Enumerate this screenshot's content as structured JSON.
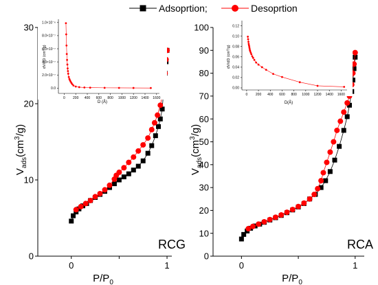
{
  "legend": {
    "placement": "top-center",
    "items": [
      {
        "label": "Adsoprtion;",
        "marker": "square",
        "color": "#000000"
      },
      {
        "label": "Desoprtion",
        "marker": "circle",
        "color": "#ff0000"
      }
    ]
  },
  "colors": {
    "adsorption": "#000000",
    "desorption": "#ff0000",
    "axis": "#000000"
  },
  "chart_data": [
    {
      "type": "scatter",
      "label": "RCG",
      "xlabel": "P/P0",
      "ylabel": "Vads(cm3/g)",
      "xlim": [
        -0.35,
        1.05
      ],
      "ylim": [
        0,
        30
      ],
      "xticks": [
        0,
        0.5,
        1
      ],
      "xtick_labels": [
        "0",
        "",
        "1"
      ],
      "yticks": [
        0,
        10,
        20,
        30
      ],
      "ytick_labels": [
        "0",
        "10",
        "20",
        "30"
      ],
      "grid": false,
      "series": [
        {
          "name": "Adsoprtion;",
          "marker": "square",
          "color": "#000000",
          "x": [
            0.0,
            0.02,
            0.05,
            0.08,
            0.12,
            0.16,
            0.2,
            0.25,
            0.3,
            0.35,
            0.4,
            0.45,
            0.5,
            0.55,
            0.6,
            0.65,
            0.7,
            0.75,
            0.8,
            0.84,
            0.88,
            0.91,
            0.93,
            0.95,
            0.96,
            0.97,
            0.98,
            0.99,
            1.0
          ],
          "y": [
            4.6,
            5.3,
            5.8,
            6.2,
            6.6,
            6.9,
            7.3,
            7.7,
            8.1,
            8.5,
            9.0,
            9.5,
            10.0,
            10.4,
            10.8,
            11.3,
            11.8,
            12.5,
            13.5,
            14.5,
            15.8,
            17.0,
            18.0,
            19.3,
            21.0,
            22.5,
            24.0,
            25.5,
            27.0
          ]
        },
        {
          "name": "Desoprtion",
          "marker": "circle",
          "color": "#ff0000",
          "x": [
            1.0,
            0.99,
            0.98,
            0.97,
            0.95,
            0.93,
            0.9,
            0.87,
            0.84,
            0.8,
            0.75,
            0.7,
            0.65,
            0.6,
            0.55,
            0.5,
            0.47,
            0.45,
            0.4,
            0.35,
            0.3,
            0.25,
            0.2,
            0.15,
            0.1,
            0.05
          ],
          "y": [
            27.0,
            25.8,
            24.0,
            22.8,
            21.0,
            19.8,
            18.5,
            17.5,
            16.6,
            15.5,
            14.6,
            13.8,
            13.0,
            12.3,
            11.6,
            11.0,
            10.6,
            10.1,
            9.3,
            8.7,
            8.2,
            7.8,
            7.3,
            6.9,
            6.5,
            6.1
          ]
        }
      ],
      "inset": {
        "type": "scatter",
        "xlabel": "D (Å)",
        "ylabel": "dV/dD (cm3/g)",
        "xlim": [
          -100,
          1650
        ],
        "ylim": [
          -8e-08,
          1.05e-06
        ],
        "xticks": [
          0,
          200,
          400,
          600,
          800,
          1000,
          1200,
          1400,
          1600
        ],
        "xtick_labels": [
          "0",
          "200",
          "400",
          "600",
          "800",
          "1000",
          "1200",
          "1400",
          "1600"
        ],
        "yticks": [
          0,
          2e-07,
          4e-07,
          6e-07,
          8e-07,
          1e-06
        ],
        "ytick_labels": [
          "0.0",
          "2.0×10⁻⁷",
          "4.0×10⁻⁷",
          "6.0×10⁻⁷",
          "8.0×10⁻⁷",
          "1.0×10⁻⁶"
        ],
        "color": "#ff0000",
        "x": [
          30,
          35,
          40,
          45,
          50,
          55,
          60,
          65,
          70,
          80,
          90,
          100,
          110,
          125,
          140,
          160,
          200,
          260,
          350,
          450,
          700,
          950,
          1200,
          1500
        ],
        "y": [
          9.9e-07,
          8.2e-07,
          6.5e-07,
          5.2e-07,
          4.3e-07,
          3.6e-07,
          3e-07,
          2.6e-07,
          2.2e-07,
          1.7e-07,
          1.4e-07,
          1.2e-07,
          1e-07,
          8e-08,
          6e-08,
          4e-08,
          2.5e-08,
          1.5e-08,
          1e-08,
          8e-09,
          5e-09,
          4e-09,
          3e-09,
          2e-09
        ]
      }
    },
    {
      "type": "scatter",
      "label": "RCA",
      "xlabel": "P/P0",
      "ylabel": "Vads(cm3/g)",
      "xlim": [
        -0.25,
        1.08
      ],
      "ylim": [
        0,
        100
      ],
      "xticks": [
        0,
        0.5,
        1
      ],
      "xtick_labels": [
        "0",
        "",
        "1"
      ],
      "yticks": [
        0,
        10,
        20,
        30,
        40,
        50,
        60,
        70,
        80,
        90,
        100
      ],
      "ytick_labels": [
        "0",
        "10",
        "20",
        "30",
        "40",
        "50",
        "60",
        "70",
        "80",
        "90",
        "100"
      ],
      "grid": false,
      "series": [
        {
          "name": "Adsoprtion;",
          "marker": "square",
          "color": "#000000",
          "x": [
            0.0,
            0.02,
            0.05,
            0.08,
            0.12,
            0.16,
            0.2,
            0.25,
            0.3,
            0.35,
            0.4,
            0.45,
            0.5,
            0.55,
            0.6,
            0.65,
            0.7,
            0.74,
            0.78,
            0.82,
            0.86,
            0.9,
            0.93,
            0.95,
            0.97,
            0.98,
            0.99,
            1.0
          ],
          "y": [
            7.5,
            9.5,
            11.0,
            12.2,
            13.2,
            14.0,
            14.8,
            15.8,
            16.8,
            17.8,
            19.0,
            20.2,
            21.5,
            23.0,
            25.0,
            27.0,
            30.0,
            33.0,
            37.0,
            42.0,
            48.0,
            55.0,
            61.0,
            66.0,
            72.0,
            77.0,
            82.0,
            87.0
          ]
        },
        {
          "name": "Desoprtion",
          "marker": "circle",
          "color": "#ff0000",
          "x": [
            1.0,
            0.99,
            0.98,
            0.97,
            0.95,
            0.93,
            0.9,
            0.87,
            0.84,
            0.81,
            0.78,
            0.75,
            0.72,
            0.7,
            0.67,
            0.64,
            0.6,
            0.55,
            0.5,
            0.45,
            0.4,
            0.35,
            0.3,
            0.25,
            0.2,
            0.15,
            0.1,
            0.06
          ],
          "y": [
            89.0,
            84.0,
            80.0,
            75.0,
            70.0,
            67.0,
            63.0,
            59.0,
            55.0,
            50.0,
            45.5,
            41.0,
            36.5,
            33.0,
            29.5,
            27.0,
            25.0,
            23.2,
            21.7,
            20.4,
            19.2,
            18.0,
            17.0,
            16.0,
            15.0,
            14.0,
            13.0,
            12.0
          ]
        }
      ],
      "inset": {
        "type": "scatter",
        "xlabel": "D(Å)",
        "ylabel": "dV/dD (cm3/g)",
        "xlim": [
          -80,
          1700
        ],
        "ylim": [
          -0.004,
          0.13
        ],
        "xticks": [
          0,
          200,
          400,
          600,
          800,
          1000,
          1200,
          1400,
          1600
        ],
        "xtick_labels": [
          "0",
          "200",
          "400",
          "600",
          "800",
          "1000",
          "1200",
          "1400",
          "1600"
        ],
        "yticks": [
          0,
          0.02,
          0.04,
          0.06,
          0.08,
          0.1,
          0.12
        ],
        "ytick_labels": [
          "0.00",
          "0.02",
          "0.04",
          "0.06",
          "0.08",
          "0.10",
          "0.12"
        ],
        "color": "#ff0000",
        "x": [
          20,
          25,
          30,
          35,
          40,
          45,
          50,
          55,
          60,
          70,
          80,
          95,
          110,
          130,
          160,
          200,
          260,
          330,
          450,
          600,
          900,
          1200,
          1650
        ],
        "y": [
          0.099,
          0.094,
          0.089,
          0.085,
          0.082,
          0.079,
          0.076,
          0.073,
          0.071,
          0.068,
          0.065,
          0.061,
          0.058,
          0.054,
          0.049,
          0.045,
          0.04,
          0.035,
          0.027,
          0.021,
          0.011,
          0.004,
          0.002
        ]
      }
    }
  ]
}
